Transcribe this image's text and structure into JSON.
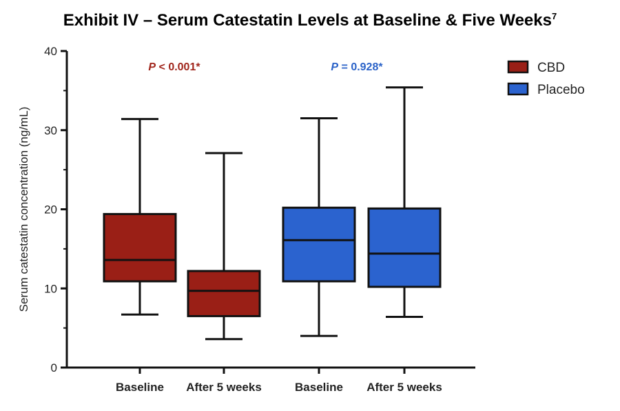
{
  "title": {
    "text": "Exhibit IV – Serum Catestatin Levels at Baseline & Five Weeks",
    "superscript": "7"
  },
  "chart_data": {
    "type": "boxplot",
    "ylabel": "Serum catestatin concentration (ng/mL)",
    "ylim": [
      0,
      40
    ],
    "yticks": [
      0,
      10,
      20,
      30,
      40
    ],
    "categories": [
      "Baseline",
      "After 5 weeks",
      "Baseline",
      "After 5 weeks"
    ],
    "series": [
      {
        "name": "CBD",
        "color": "#9a1f16",
        "p_value": {
          "label": "P",
          "rest": " < 0.001*",
          "color": "#a0251b"
        },
        "boxes": [
          {
            "category": "Baseline",
            "min": 6.7,
            "q1": 10.9,
            "median": 13.6,
            "q3": 19.4,
            "max": 31.4
          },
          {
            "category": "After 5 weeks",
            "min": 3.6,
            "q1": 6.5,
            "median": 9.7,
            "q3": 12.2,
            "max": 27.1
          }
        ]
      },
      {
        "name": "Placebo",
        "color": "#2b63cf",
        "p_value": {
          "label": "P",
          "rest": " = 0.928*",
          "color": "#2a62c8"
        },
        "boxes": [
          {
            "category": "Baseline",
            "min": 4.0,
            "q1": 10.9,
            "median": 16.1,
            "q3": 20.2,
            "max": 31.5
          },
          {
            "category": "After 5 weeks",
            "min": 6.4,
            "q1": 10.2,
            "median": 14.4,
            "q3": 20.1,
            "max": 35.4
          }
        ]
      }
    ],
    "legend": {
      "position": "top-right"
    }
  }
}
